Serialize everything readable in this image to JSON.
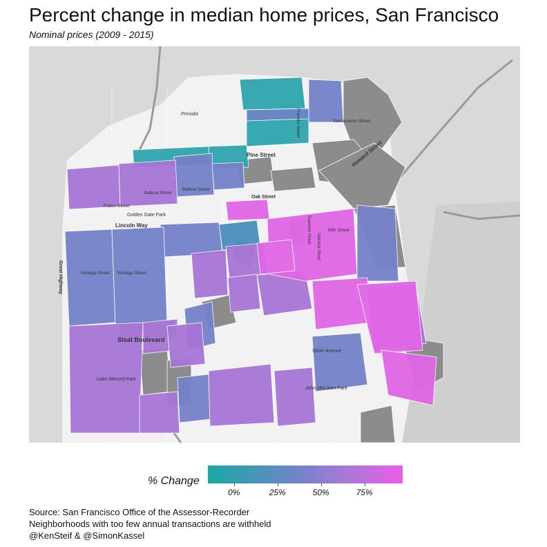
{
  "title": "Percent change in median home prices, San Francisco",
  "subtitle": "Nominal prices (2009 - 2015)",
  "map": {
    "background_color": "#d9d9d9",
    "withheld_color": "#8c8c8c",
    "labels": {
      "presidio": "Presidio",
      "franklin": "Franklin Street",
      "pine": "Pine Street",
      "sacramento": "Sacramento Street",
      "howard": "Howard Street",
      "balboa1": "Balboa Street",
      "balboa2": "Balboa Street",
      "fulton": "Fulton Street",
      "golden_gate": "Golden Gate Park",
      "lincoln": "Lincoln Way",
      "oak": "Oak Street",
      "guerrero": "Guerrero Street",
      "valencia": "Valencia Street",
      "sixteenth": "16th Street",
      "noriega1": "Noriega Street",
      "noriega2": "Noriega Street",
      "great_hwy": "Great Highway",
      "sloat": "Sloat Boulevard",
      "lake_merced": "Lake Merced Park",
      "silver": "Silver Avenue",
      "mclaren": "John McLaren Park"
    }
  },
  "legend": {
    "title": "% Change",
    "ticks": [
      "0%",
      "25%",
      "50%",
      "75%"
    ],
    "tick_values": [
      0,
      25,
      50,
      75
    ],
    "range": [
      -15,
      97
    ],
    "colors": {
      "low": "#1aa9a3",
      "mid": "#6e84c9",
      "high_mid": "#a77ad6",
      "high": "#e95de8"
    }
  },
  "footer": {
    "line1": "Source: San Francisco Office of the Assessor-Recorder",
    "line2": "Neighborhoods with too few annual transactions are withheld",
    "line3": "@KenSteif & @SimonKassel"
  }
}
